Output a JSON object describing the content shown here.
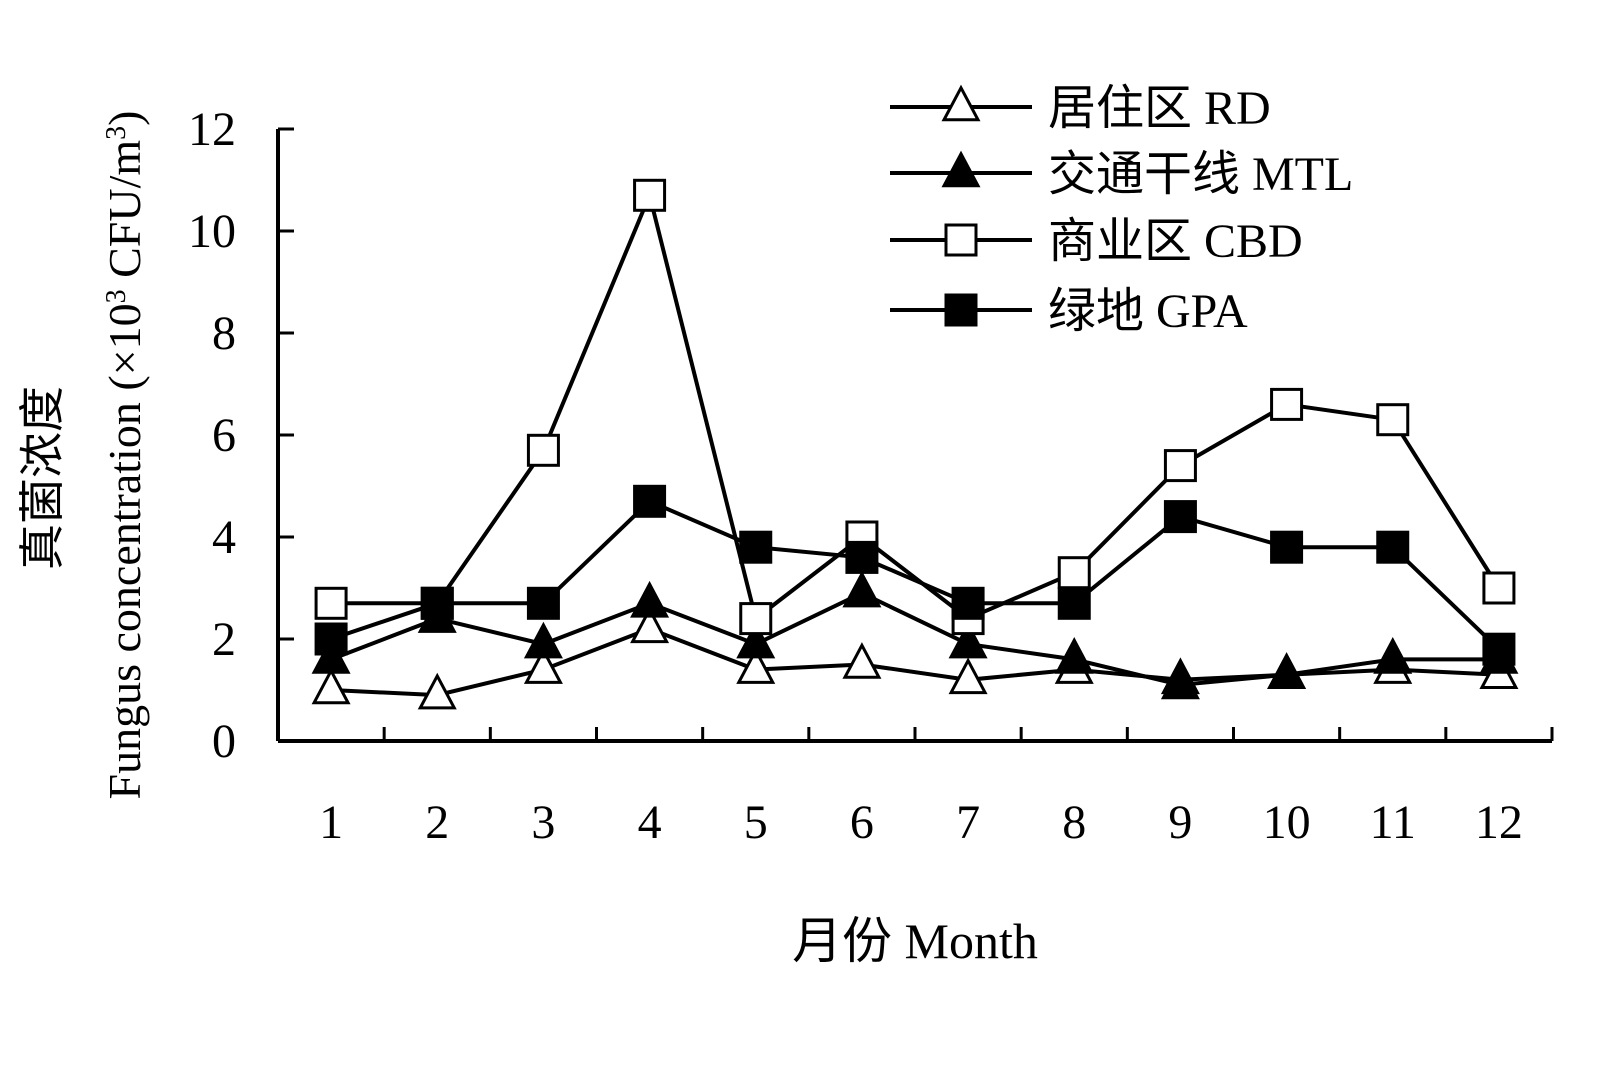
{
  "chart_data": {
    "type": "line",
    "xlabel": "月份 Month",
    "ylabel_cn": "真菌浓度",
    "ylabel_en_prefix": "Fungus concentration (×10",
    "ylabel_en_sup1": "3",
    "ylabel_en_mid": " CFU/m",
    "ylabel_en_sup2": "3",
    "ylabel_en_suffix": ")",
    "ylim": [
      0,
      12
    ],
    "yticks": [
      0,
      2,
      4,
      6,
      8,
      10,
      12
    ],
    "categories": [
      "1",
      "2",
      "3",
      "4",
      "5",
      "6",
      "7",
      "8",
      "9",
      "10",
      "11",
      "12"
    ],
    "legend_position": "top-right",
    "series": [
      {
        "name": "居住区 RD",
        "marker": "triangle-open",
        "values": [
          1.0,
          0.9,
          1.4,
          2.2,
          1.4,
          1.5,
          1.2,
          1.4,
          1.2,
          1.3,
          1.4,
          1.3
        ]
      },
      {
        "name": "交通干线 MTL",
        "marker": "triangle-filled",
        "values": [
          1.6,
          2.4,
          1.9,
          2.7,
          1.9,
          2.9,
          1.9,
          1.6,
          1.1,
          1.3,
          1.6,
          1.6
        ]
      },
      {
        "name": "商业区 CBD",
        "marker": "square-open",
        "values": [
          2.7,
          2.7,
          5.7,
          10.7,
          2.4,
          4.0,
          2.4,
          3.3,
          5.4,
          6.6,
          6.3,
          3.0
        ]
      },
      {
        "name": "绿地 GPA",
        "marker": "square-filled",
        "values": [
          2.0,
          2.7,
          2.7,
          4.7,
          3.8,
          3.6,
          2.7,
          2.7,
          4.4,
          3.8,
          3.8,
          1.8
        ]
      }
    ]
  }
}
